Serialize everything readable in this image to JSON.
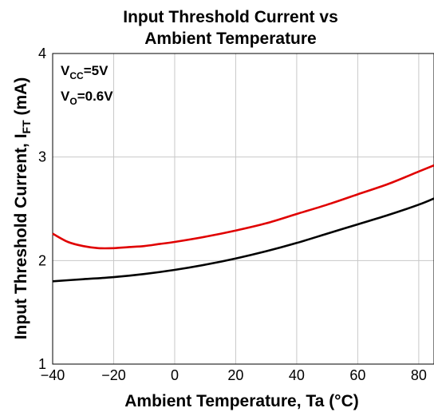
{
  "chart_data": {
    "type": "line",
    "title_line1": "Input Threshold Current vs",
    "title_line2": "Ambient Temperature",
    "xlabel": "Ambient Temperature, Ta (°C)",
    "ylabel_main": "Input Threshold Current, I",
    "ylabel_sub": "FT",
    "ylabel_unit": " (mA)",
    "xlim": [
      -40,
      85
    ],
    "ylim": [
      1,
      4
    ],
    "x_ticks": [
      "−40",
      "−20",
      "0",
      "20",
      "40",
      "60",
      "80"
    ],
    "x_tick_values": [
      -40,
      -20,
      0,
      20,
      40,
      60,
      80
    ],
    "y_ticks": [
      "1",
      "2",
      "3",
      "4"
    ],
    "y_tick_values": [
      1,
      2,
      3,
      4
    ],
    "grid": true,
    "annotations": [
      {
        "main": "V",
        "sub": "CC",
        "rest": "=5V"
      },
      {
        "main": "V",
        "sub": "O",
        "rest": "=0.6V"
      }
    ],
    "series": [
      {
        "color": "#e00000",
        "x": [
          -40,
          -35,
          -30,
          -25,
          -20,
          -15,
          -10,
          -5,
          0,
          10,
          20,
          30,
          40,
          50,
          60,
          70,
          80,
          85
        ],
        "y": [
          2.26,
          2.18,
          2.14,
          2.12,
          2.12,
          2.13,
          2.14,
          2.16,
          2.18,
          2.23,
          2.29,
          2.36,
          2.45,
          2.54,
          2.64,
          2.74,
          2.86,
          2.92
        ]
      },
      {
        "color": "#000000",
        "x": [
          -40,
          -30,
          -20,
          -10,
          0,
          10,
          20,
          30,
          40,
          50,
          60,
          70,
          80,
          85
        ],
        "y": [
          1.8,
          1.82,
          1.84,
          1.87,
          1.91,
          1.96,
          2.02,
          2.09,
          2.17,
          2.26,
          2.35,
          2.44,
          2.54,
          2.6
        ]
      }
    ]
  }
}
